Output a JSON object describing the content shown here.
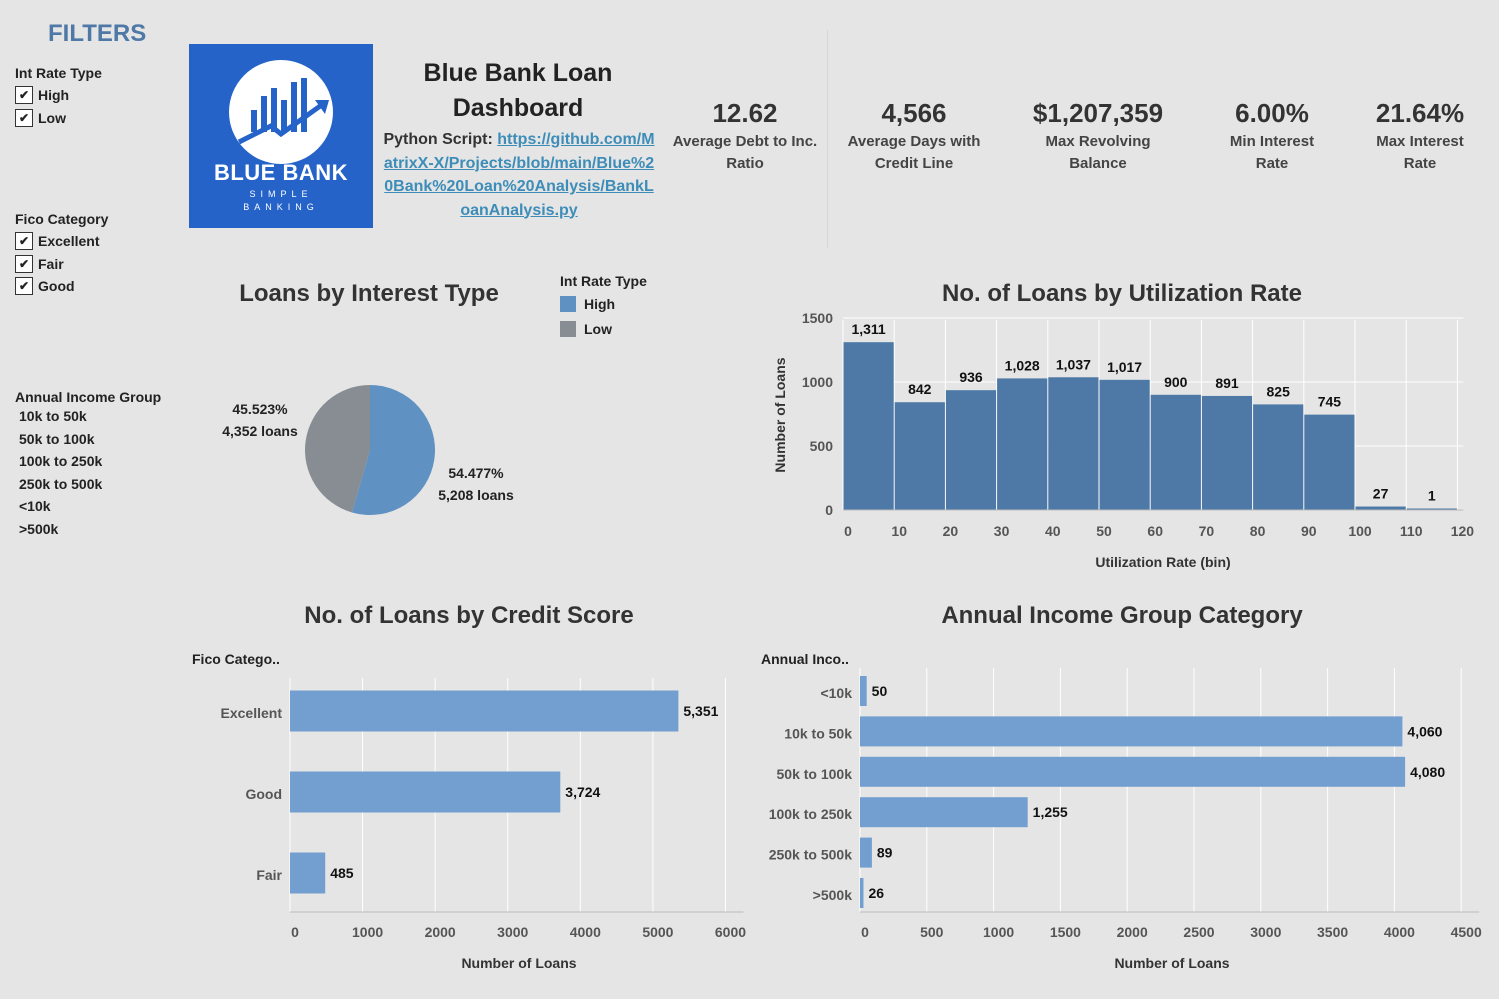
{
  "filters": {
    "title": "FILTERS",
    "int_rate_type": {
      "label": "Int Rate Type",
      "options": [
        "High",
        "Low"
      ]
    },
    "fico_category": {
      "label": "Fico Category",
      "options": [
        "Excellent",
        "Fair",
        "Good"
      ]
    },
    "annual_income_group": {
      "label": "Annual Income Group",
      "options": [
        "10k to 50k",
        "50k to 100k",
        "100k to 250k",
        "250k to 500k",
        "<10k",
        ">500k"
      ]
    },
    "check_glyph": "✔"
  },
  "logo": {
    "name": "BLUE BANK",
    "tagline_1": "SIMPLE",
    "tagline_2": "BANKING",
    "icon": "bar-chart-arrow-icon"
  },
  "header": {
    "title_line1": "Blue Bank Loan",
    "title_line2": "Dashboard",
    "script_label": "Python Script:",
    "script_link": "https://github.com/MatrixX-X/Projects/blob/main/Blue%20Bank%20Loan%20Analysis/BankLoanAnalysis.py"
  },
  "kpis": [
    {
      "value": "12.62",
      "label_1": "Average Debt to Inc.",
      "label_2": "Ratio"
    },
    {
      "value": "4,566",
      "label_1": "Average Days with",
      "label_2": "Credit Line"
    },
    {
      "value": "$1,207,359",
      "label_1": "Max Revolving",
      "label_2": "Balance"
    },
    {
      "value": "6.00%",
      "label_1": "Min Interest",
      "label_2": "Rate"
    },
    {
      "value": "21.64%",
      "label_1": "Max Interest",
      "label_2": "Rate"
    }
  ],
  "colors": {
    "accent": "#4e79a7",
    "bar_light": "#729fcf",
    "bar_dark": "#4e79a7",
    "pie_high": "#5f91c2",
    "pie_low": "#878d92",
    "link": "#3d8db8",
    "logo_bg": "#2563c9"
  },
  "chart_data": [
    {
      "type": "pie",
      "title": "Loans by Interest Type",
      "legend_title": "Int Rate Type",
      "slices": [
        {
          "name": "High",
          "percent": "54.477%",
          "loans_label": "5,208 loans",
          "value": 5208
        },
        {
          "name": "Low",
          "percent": "45.523%",
          "loans_label": "4,352 loans",
          "value": 4352
        }
      ]
    },
    {
      "type": "bar",
      "title": "No. of Loans by Utilization Rate",
      "xlabel": "Utilization Rate (bin)",
      "ylabel": "Number of Loans",
      "bins": [
        0,
        10,
        20,
        30,
        40,
        50,
        60,
        70,
        80,
        90,
        100,
        110
      ],
      "values": [
        1311,
        842,
        936,
        1028,
        1037,
        1017,
        900,
        891,
        825,
        745,
        27,
        1
      ],
      "labels": [
        "1,311",
        "842",
        "936",
        "1,028",
        "1,037",
        "1,017",
        "900",
        "891",
        "825",
        "745",
        "27",
        "1"
      ],
      "xticks": [
        "0",
        "10",
        "20",
        "30",
        "40",
        "50",
        "60",
        "70",
        "80",
        "90",
        "100",
        "110",
        "120"
      ],
      "yticks": [
        "0",
        "500",
        "1000",
        "1500"
      ],
      "xlim": [
        0,
        120
      ],
      "ylim": [
        0,
        1500
      ]
    },
    {
      "type": "bar",
      "orientation": "horizontal",
      "title": "No. of Loans by Credit Score",
      "dimension_label": "Fico Catego..",
      "xlabel": "Number of Loans",
      "categories": [
        "Excellent",
        "Good",
        "Fair"
      ],
      "values": [
        5351,
        3724,
        485
      ],
      "labels": [
        "5,351",
        "3,724",
        "485"
      ],
      "xticks": [
        "0",
        "1000",
        "2000",
        "3000",
        "4000",
        "5000",
        "6000"
      ],
      "xlim": [
        0,
        6000
      ]
    },
    {
      "type": "bar",
      "orientation": "horizontal",
      "title": "Annual Income Group Category",
      "dimension_label": "Annual Inco..",
      "xlabel": "Number of Loans",
      "categories": [
        "<10k",
        "10k to 50k",
        "50k to 100k",
        "100k to 250k",
        "250k to 500k",
        ">500k"
      ],
      "values": [
        50,
        4060,
        4080,
        1255,
        89,
        26
      ],
      "labels": [
        "50",
        "4,060",
        "4,080",
        "1,255",
        "89",
        "26"
      ],
      "xticks": [
        "0",
        "500",
        "1000",
        "1500",
        "2000",
        "2500",
        "3000",
        "3500",
        "4000",
        "4500"
      ],
      "xlim": [
        0,
        4500
      ]
    }
  ]
}
